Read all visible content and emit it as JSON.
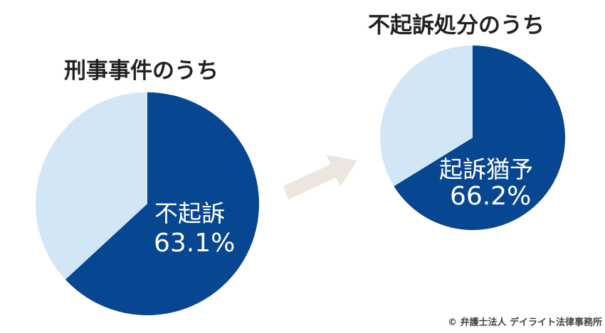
{
  "chart_data": [
    {
      "type": "pie",
      "title": "刑事事件のうち",
      "slices": [
        {
          "label": "不起訴",
          "value": 63.1,
          "display": "63.1%",
          "color": "#074690"
        },
        {
          "label": "",
          "value": 36.9,
          "color": "#d3e6f5"
        }
      ]
    },
    {
      "type": "pie",
      "title": "不起訴処分のうち",
      "slices": [
        {
          "label": "起訴猶予",
          "value": 66.2,
          "display": "66.2%",
          "color": "#074690"
        },
        {
          "label": "",
          "value": 33.8,
          "color": "#d3e6f5"
        }
      ]
    }
  ],
  "arrow_color": "#ece6df",
  "copyright": "© 弁護士法人 デイライト法律事務所"
}
